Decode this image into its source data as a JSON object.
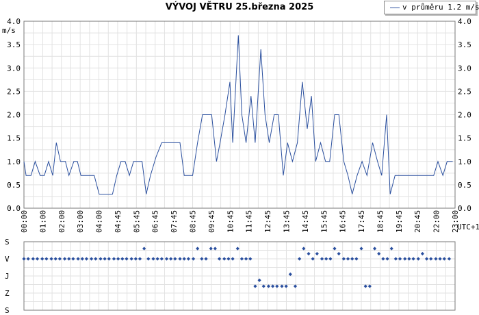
{
  "title": "VÝVOJ VĚTRU  25.března 2025",
  "legend": {
    "label": "v průměru 1.2 m/s",
    "color": "#2a4f9e"
  },
  "timezone_label": "UTC+1",
  "chart_data": [
    {
      "type": "line",
      "title": "VÝVOJ VĚTRU  25.března 2025",
      "ylabel": "m/s",
      "ylim": [
        0,
        4
      ],
      "y_ticks": [
        "0.0",
        "0.5",
        "1.0",
        "1.5",
        "2.0",
        "2.5",
        "3.0",
        "3.5",
        "4.0"
      ],
      "x_ticks": [
        "00:00",
        "01:00",
        "02:00",
        "03:00",
        "04:00",
        "04:45",
        "05:45",
        "06:45",
        "07:45",
        "08:45",
        "09:45",
        "10:45",
        "11:45",
        "12:45",
        "13:45",
        "14:45",
        "15:45",
        "16:45",
        "17:45",
        "18:45",
        "19:45",
        "20:45",
        "22:00",
        "23:00"
      ],
      "grid": true,
      "series": [
        {
          "name": "v průměru 1.2 m/s",
          "color": "#2a4f9e",
          "points": [
            [
              0.0,
              1.0
            ],
            [
              0.15,
              0.7
            ],
            [
              0.5,
              0.7
            ],
            [
              0.8,
              1.0
            ],
            [
              1.15,
              0.7
            ],
            [
              1.45,
              0.7
            ],
            [
              1.75,
              1.0
            ],
            [
              2.05,
              0.7
            ],
            [
              2.3,
              1.4
            ],
            [
              2.6,
              1.0
            ],
            [
              2.95,
              1.0
            ],
            [
              3.2,
              0.7
            ],
            [
              3.55,
              1.0
            ],
            [
              3.8,
              1.0
            ],
            [
              4.05,
              0.7
            ],
            [
              4.4,
              0.7
            ],
            [
              4.7,
              0.7
            ],
            [
              5.0,
              0.7
            ],
            [
              5.35,
              0.3
            ],
            [
              5.65,
              0.3
            ],
            [
              5.95,
              0.3
            ],
            [
              6.3,
              0.3
            ],
            [
              6.6,
              0.7
            ],
            [
              6.9,
              1.0
            ],
            [
              7.2,
              1.0
            ],
            [
              7.5,
              0.7
            ],
            [
              7.8,
              1.0
            ],
            [
              8.1,
              1.0
            ],
            [
              8.4,
              1.0
            ],
            [
              8.7,
              0.3
            ],
            [
              9.0,
              0.7
            ],
            [
              9.4,
              1.1
            ],
            [
              9.8,
              1.4
            ],
            [
              10.1,
              1.4
            ],
            [
              10.4,
              1.4
            ],
            [
              10.7,
              1.4
            ],
            [
              11.1,
              1.4
            ],
            [
              11.4,
              0.7
            ],
            [
              11.7,
              0.7
            ],
            [
              12.0,
              0.7
            ],
            [
              12.35,
              1.4
            ],
            [
              12.7,
              2.0
            ],
            [
              13.05,
              2.0
            ],
            [
              13.35,
              2.0
            ],
            [
              13.7,
              1.0
            ],
            [
              13.95,
              1.4
            ],
            [
              14.3,
              2.0
            ],
            [
              14.65,
              2.7
            ],
            [
              14.85,
              1.4
            ],
            [
              15.25,
              3.7
            ],
            [
              15.5,
              2.0
            ],
            [
              15.8,
              1.4
            ],
            [
              16.15,
              2.4
            ],
            [
              16.45,
              1.4
            ],
            [
              16.85,
              3.4
            ],
            [
              17.15,
              2.0
            ],
            [
              17.45,
              1.4
            ],
            [
              17.8,
              2.0
            ],
            [
              18.1,
              2.0
            ],
            [
              18.45,
              0.7
            ],
            [
              18.75,
              1.4
            ],
            [
              19.1,
              1.0
            ],
            [
              19.45,
              1.4
            ],
            [
              19.8,
              2.7
            ],
            [
              20.15,
              1.7
            ],
            [
              20.45,
              2.4
            ],
            [
              20.75,
              1.0
            ],
            [
              21.1,
              1.4
            ],
            [
              21.45,
              1.0
            ],
            [
              21.75,
              1.0
            ],
            [
              22.1,
              2.0
            ],
            [
              22.4,
              2.0
            ],
            [
              22.75,
              1.0
            ],
            [
              23.05,
              0.7
            ],
            [
              23.35,
              0.3
            ],
            [
              23.7,
              0.7
            ],
            [
              24.05,
              1.0
            ],
            [
              24.4,
              0.7
            ],
            [
              24.8,
              1.4
            ],
            [
              25.15,
              1.0
            ],
            [
              25.45,
              0.7
            ],
            [
              25.8,
              2.0
            ],
            [
              26.05,
              0.3
            ],
            [
              26.4,
              0.7
            ],
            [
              26.75,
              0.7
            ],
            [
              27.1,
              0.7
            ],
            [
              27.4,
              0.7
            ],
            [
              27.75,
              0.7
            ],
            [
              28.05,
              0.7
            ],
            [
              28.4,
              0.7
            ],
            [
              28.75,
              0.7
            ],
            [
              29.15,
              0.7
            ],
            [
              29.45,
              1.0
            ],
            [
              29.8,
              0.7
            ],
            [
              30.1,
              1.0
            ],
            [
              30.5,
              1.0
            ]
          ]
        }
      ]
    },
    {
      "type": "scatter",
      "y_categories": [
        "S",
        "V",
        "J",
        "Z",
        "S"
      ],
      "grid": true,
      "series": [
        {
          "color": "#2a4f9e",
          "points": [
            [
              0.0,
              3
            ],
            [
              0.3,
              3
            ],
            [
              0.65,
              3
            ],
            [
              0.95,
              3
            ],
            [
              1.3,
              3
            ],
            [
              1.6,
              3
            ],
            [
              1.95,
              3
            ],
            [
              2.25,
              3
            ],
            [
              2.55,
              3
            ],
            [
              2.9,
              3
            ],
            [
              3.2,
              3
            ],
            [
              3.5,
              3
            ],
            [
              3.85,
              3
            ],
            [
              4.15,
              3
            ],
            [
              4.45,
              3
            ],
            [
              4.8,
              3
            ],
            [
              5.1,
              3
            ],
            [
              5.45,
              3
            ],
            [
              5.75,
              3
            ],
            [
              6.05,
              3
            ],
            [
              6.4,
              3
            ],
            [
              6.7,
              3
            ],
            [
              7.0,
              3
            ],
            [
              7.3,
              3
            ],
            [
              7.65,
              3
            ],
            [
              7.95,
              3
            ],
            [
              8.25,
              3
            ],
            [
              8.55,
              3.6
            ],
            [
              8.85,
              3
            ],
            [
              9.2,
              3
            ],
            [
              9.5,
              3
            ],
            [
              9.8,
              3
            ],
            [
              10.15,
              3
            ],
            [
              10.45,
              3
            ],
            [
              10.75,
              3
            ],
            [
              11.1,
              3
            ],
            [
              11.4,
              3
            ],
            [
              11.7,
              3
            ],
            [
              12.05,
              3
            ],
            [
              12.35,
              3.6
            ],
            [
              12.65,
              3
            ],
            [
              12.95,
              3
            ],
            [
              13.3,
              3.6
            ],
            [
              13.6,
              3.6
            ],
            [
              13.9,
              3
            ],
            [
              14.25,
              3
            ],
            [
              14.55,
              3
            ],
            [
              14.85,
              3
            ],
            [
              15.2,
              3.6
            ],
            [
              15.5,
              3
            ],
            [
              15.8,
              3
            ],
            [
              16.1,
              3
            ],
            [
              16.45,
              1.4
            ],
            [
              16.75,
              1.75
            ],
            [
              17.05,
              1.4
            ],
            [
              17.4,
              1.4
            ],
            [
              17.7,
              1.4
            ],
            [
              18.0,
              1.4
            ],
            [
              18.35,
              1.4
            ],
            [
              18.65,
              1.4
            ],
            [
              18.95,
              2.1
            ],
            [
              19.3,
              1.4
            ],
            [
              19.6,
              3
            ],
            [
              19.9,
              3.6
            ],
            [
              20.25,
              3.3
            ],
            [
              20.55,
              3
            ],
            [
              20.85,
              3.3
            ],
            [
              21.2,
              3
            ],
            [
              21.5,
              3
            ],
            [
              21.8,
              3
            ],
            [
              22.1,
              3.6
            ],
            [
              22.4,
              3.3
            ],
            [
              22.75,
              3
            ],
            [
              23.05,
              3
            ],
            [
              23.35,
              3
            ],
            [
              23.65,
              3
            ],
            [
              24.0,
              3.6
            ],
            [
              24.3,
              1.4
            ],
            [
              24.6,
              1.4
            ],
            [
              24.95,
              3.6
            ],
            [
              25.25,
              3.3
            ],
            [
              25.55,
              3
            ],
            [
              25.85,
              3
            ],
            [
              26.15,
              3.6
            ],
            [
              26.45,
              3
            ],
            [
              26.75,
              3
            ],
            [
              27.1,
              3
            ],
            [
              27.4,
              3
            ],
            [
              27.7,
              3
            ],
            [
              28.05,
              3
            ],
            [
              28.35,
              3.3
            ],
            [
              28.65,
              3
            ],
            [
              28.95,
              3
            ],
            [
              29.3,
              3
            ],
            [
              29.6,
              3
            ],
            [
              29.9,
              3
            ],
            [
              30.25,
              3
            ]
          ]
        }
      ]
    }
  ]
}
